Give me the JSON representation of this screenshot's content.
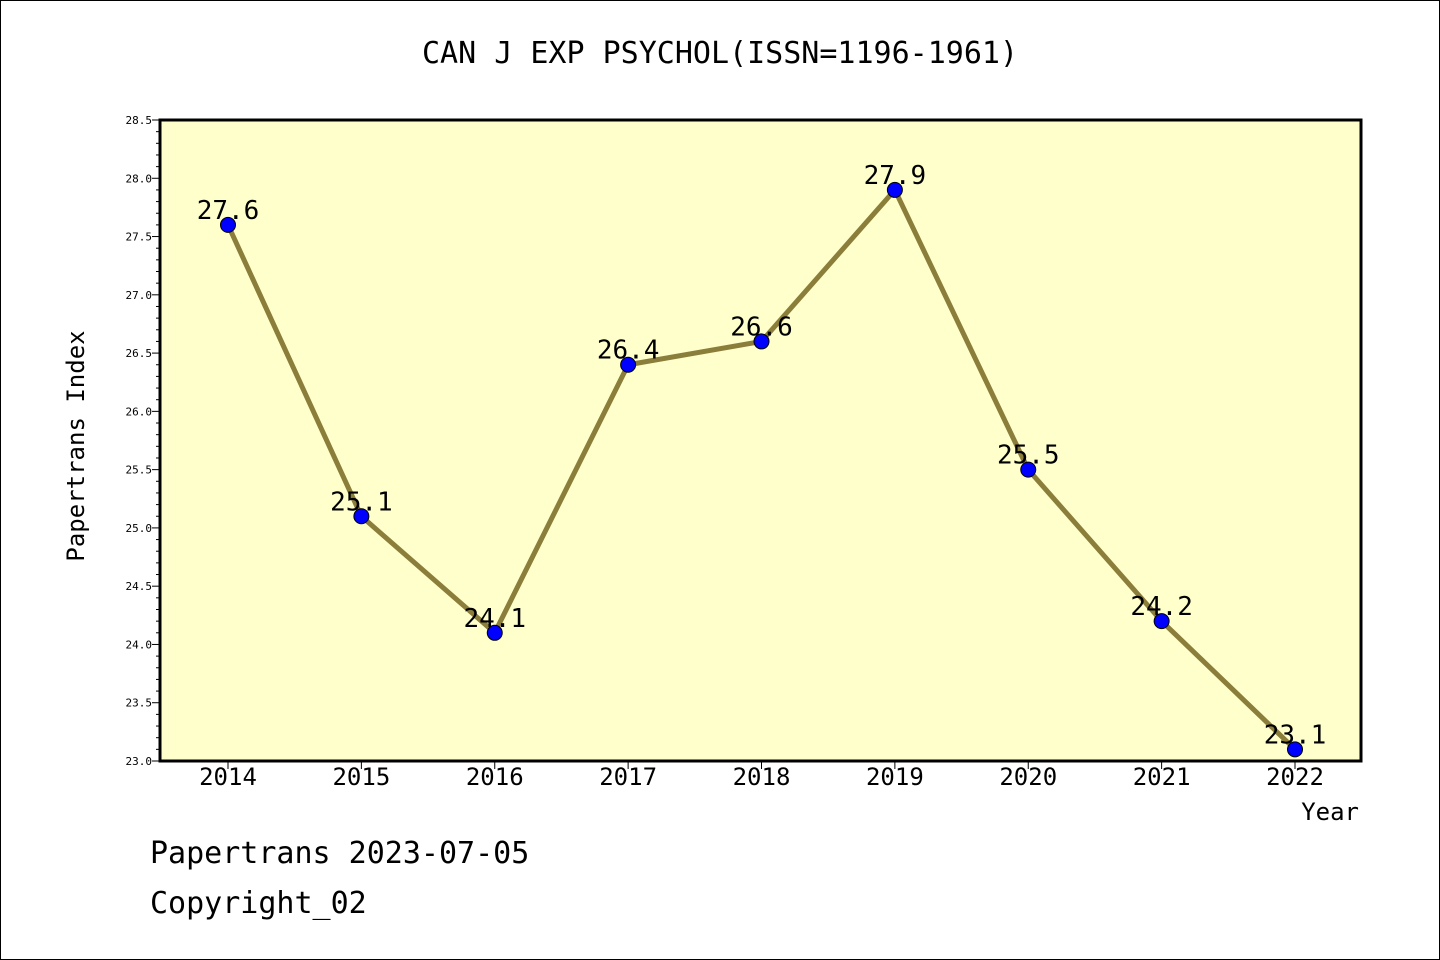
{
  "chart_data": {
    "type": "line",
    "title": "CAN J EXP PSYCHOL(ISSN=1196-1961)",
    "xlabel": "Year",
    "ylabel": "Papertrans Index",
    "x": [
      "2014",
      "2015",
      "2016",
      "2017",
      "2018",
      "2019",
      "2020",
      "2021",
      "2022"
    ],
    "series": [
      {
        "values": [
          27.6,
          25.1,
          24.1,
          26.4,
          26.6,
          27.9,
          25.5,
          24.2,
          23.1
        ],
        "data_labels": [
          "27.6",
          "25.1",
          "24.1",
          "26.4",
          "26.6",
          "27.9",
          "25.5",
          "24.2",
          "23.1"
        ]
      }
    ],
    "ylim": [
      23.0,
      28.5
    ],
    "yticks": [
      "23.0",
      "23.5",
      "24.0",
      "24.5",
      "25.0",
      "25.5",
      "26.0",
      "26.5",
      "27.0",
      "27.5",
      "28.0",
      "28.5"
    ],
    "grid": false,
    "colors": {
      "plot_background": "#ffffcc",
      "line": "#8b7d3a",
      "marker": "#0000ff"
    }
  },
  "footer": {
    "line1": "Papertrans 2023-07-05",
    "line2": "Copyright_02"
  }
}
